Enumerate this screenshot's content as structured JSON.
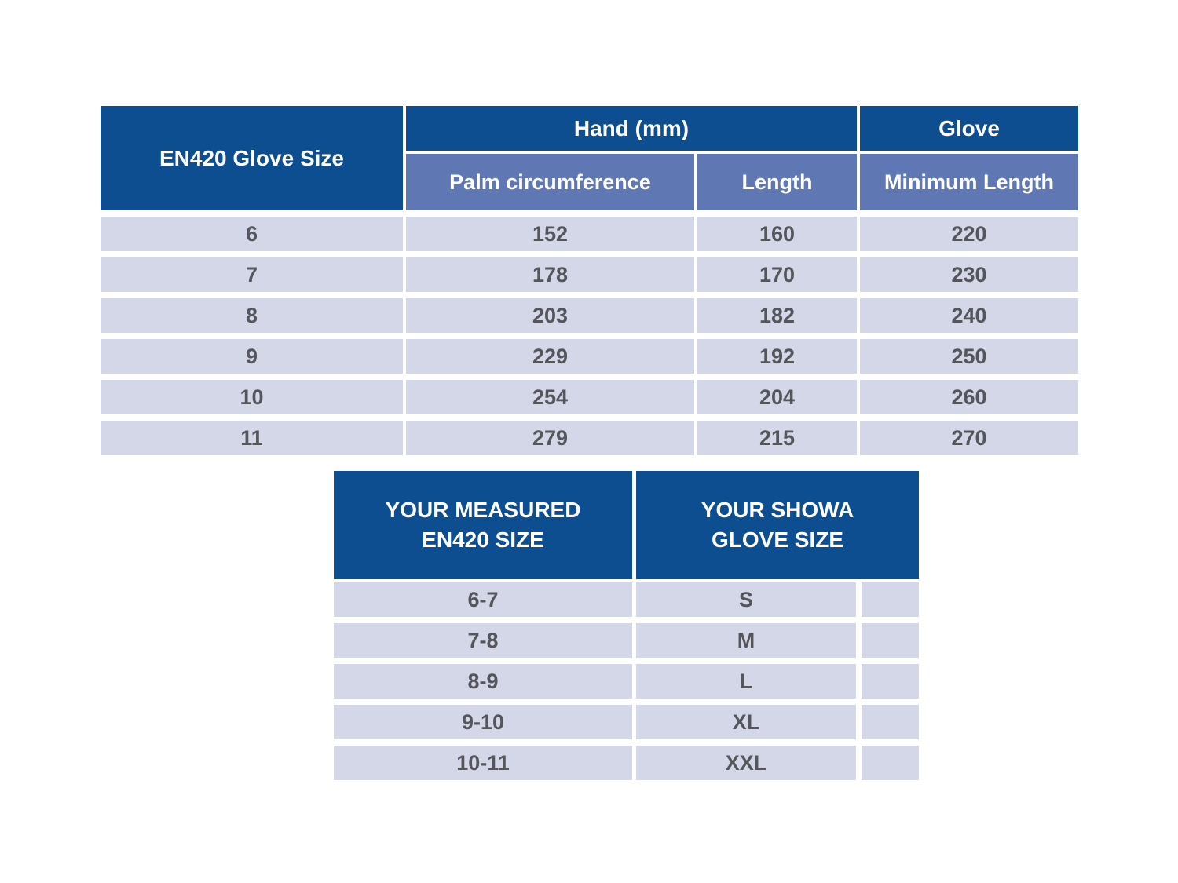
{
  "colors": {
    "header_dark_blue": "#0d4e90",
    "subheader_blue": "#5f78b4",
    "row_lavender": "#d3d7e8",
    "row_text_gray": "#55565b",
    "header_text": "#ffffff",
    "page_background": "#ffffff"
  },
  "size_table": {
    "corner_header": "EN420 Glove Size",
    "group_headers": {
      "hand": "Hand (mm)",
      "glove": "Glove"
    },
    "sub_headers": {
      "palm": "Palm circumference",
      "length": "Length",
      "min_length": "Minimum Length"
    },
    "rows": [
      {
        "size": "6",
        "palm": "152",
        "length": "160",
        "min_length": "220"
      },
      {
        "size": "7",
        "palm": "178",
        "length": "170",
        "min_length": "230"
      },
      {
        "size": "8",
        "palm": "203",
        "length": "182",
        "min_length": "240"
      },
      {
        "size": "9",
        "palm": "229",
        "length": "192",
        "min_length": "250"
      },
      {
        "size": "10",
        "palm": "254",
        "length": "204",
        "min_length": "260"
      },
      {
        "size": "11",
        "palm": "279",
        "length": "215",
        "min_length": "270"
      }
    ]
  },
  "conversion_table": {
    "headers": {
      "measured_line1": "YOUR MEASURED",
      "measured_line2": "EN420 SIZE",
      "showa_line1": "YOUR SHOWA",
      "showa_line2": "GLOVE SIZE"
    },
    "rows": [
      {
        "en420": "6-7",
        "showa": "S"
      },
      {
        "en420": "7-8",
        "showa": "M"
      },
      {
        "en420": "8-9",
        "showa": "L"
      },
      {
        "en420": "9-10",
        "showa": "XL"
      },
      {
        "en420": "10-11",
        "showa": "XXL"
      }
    ]
  }
}
